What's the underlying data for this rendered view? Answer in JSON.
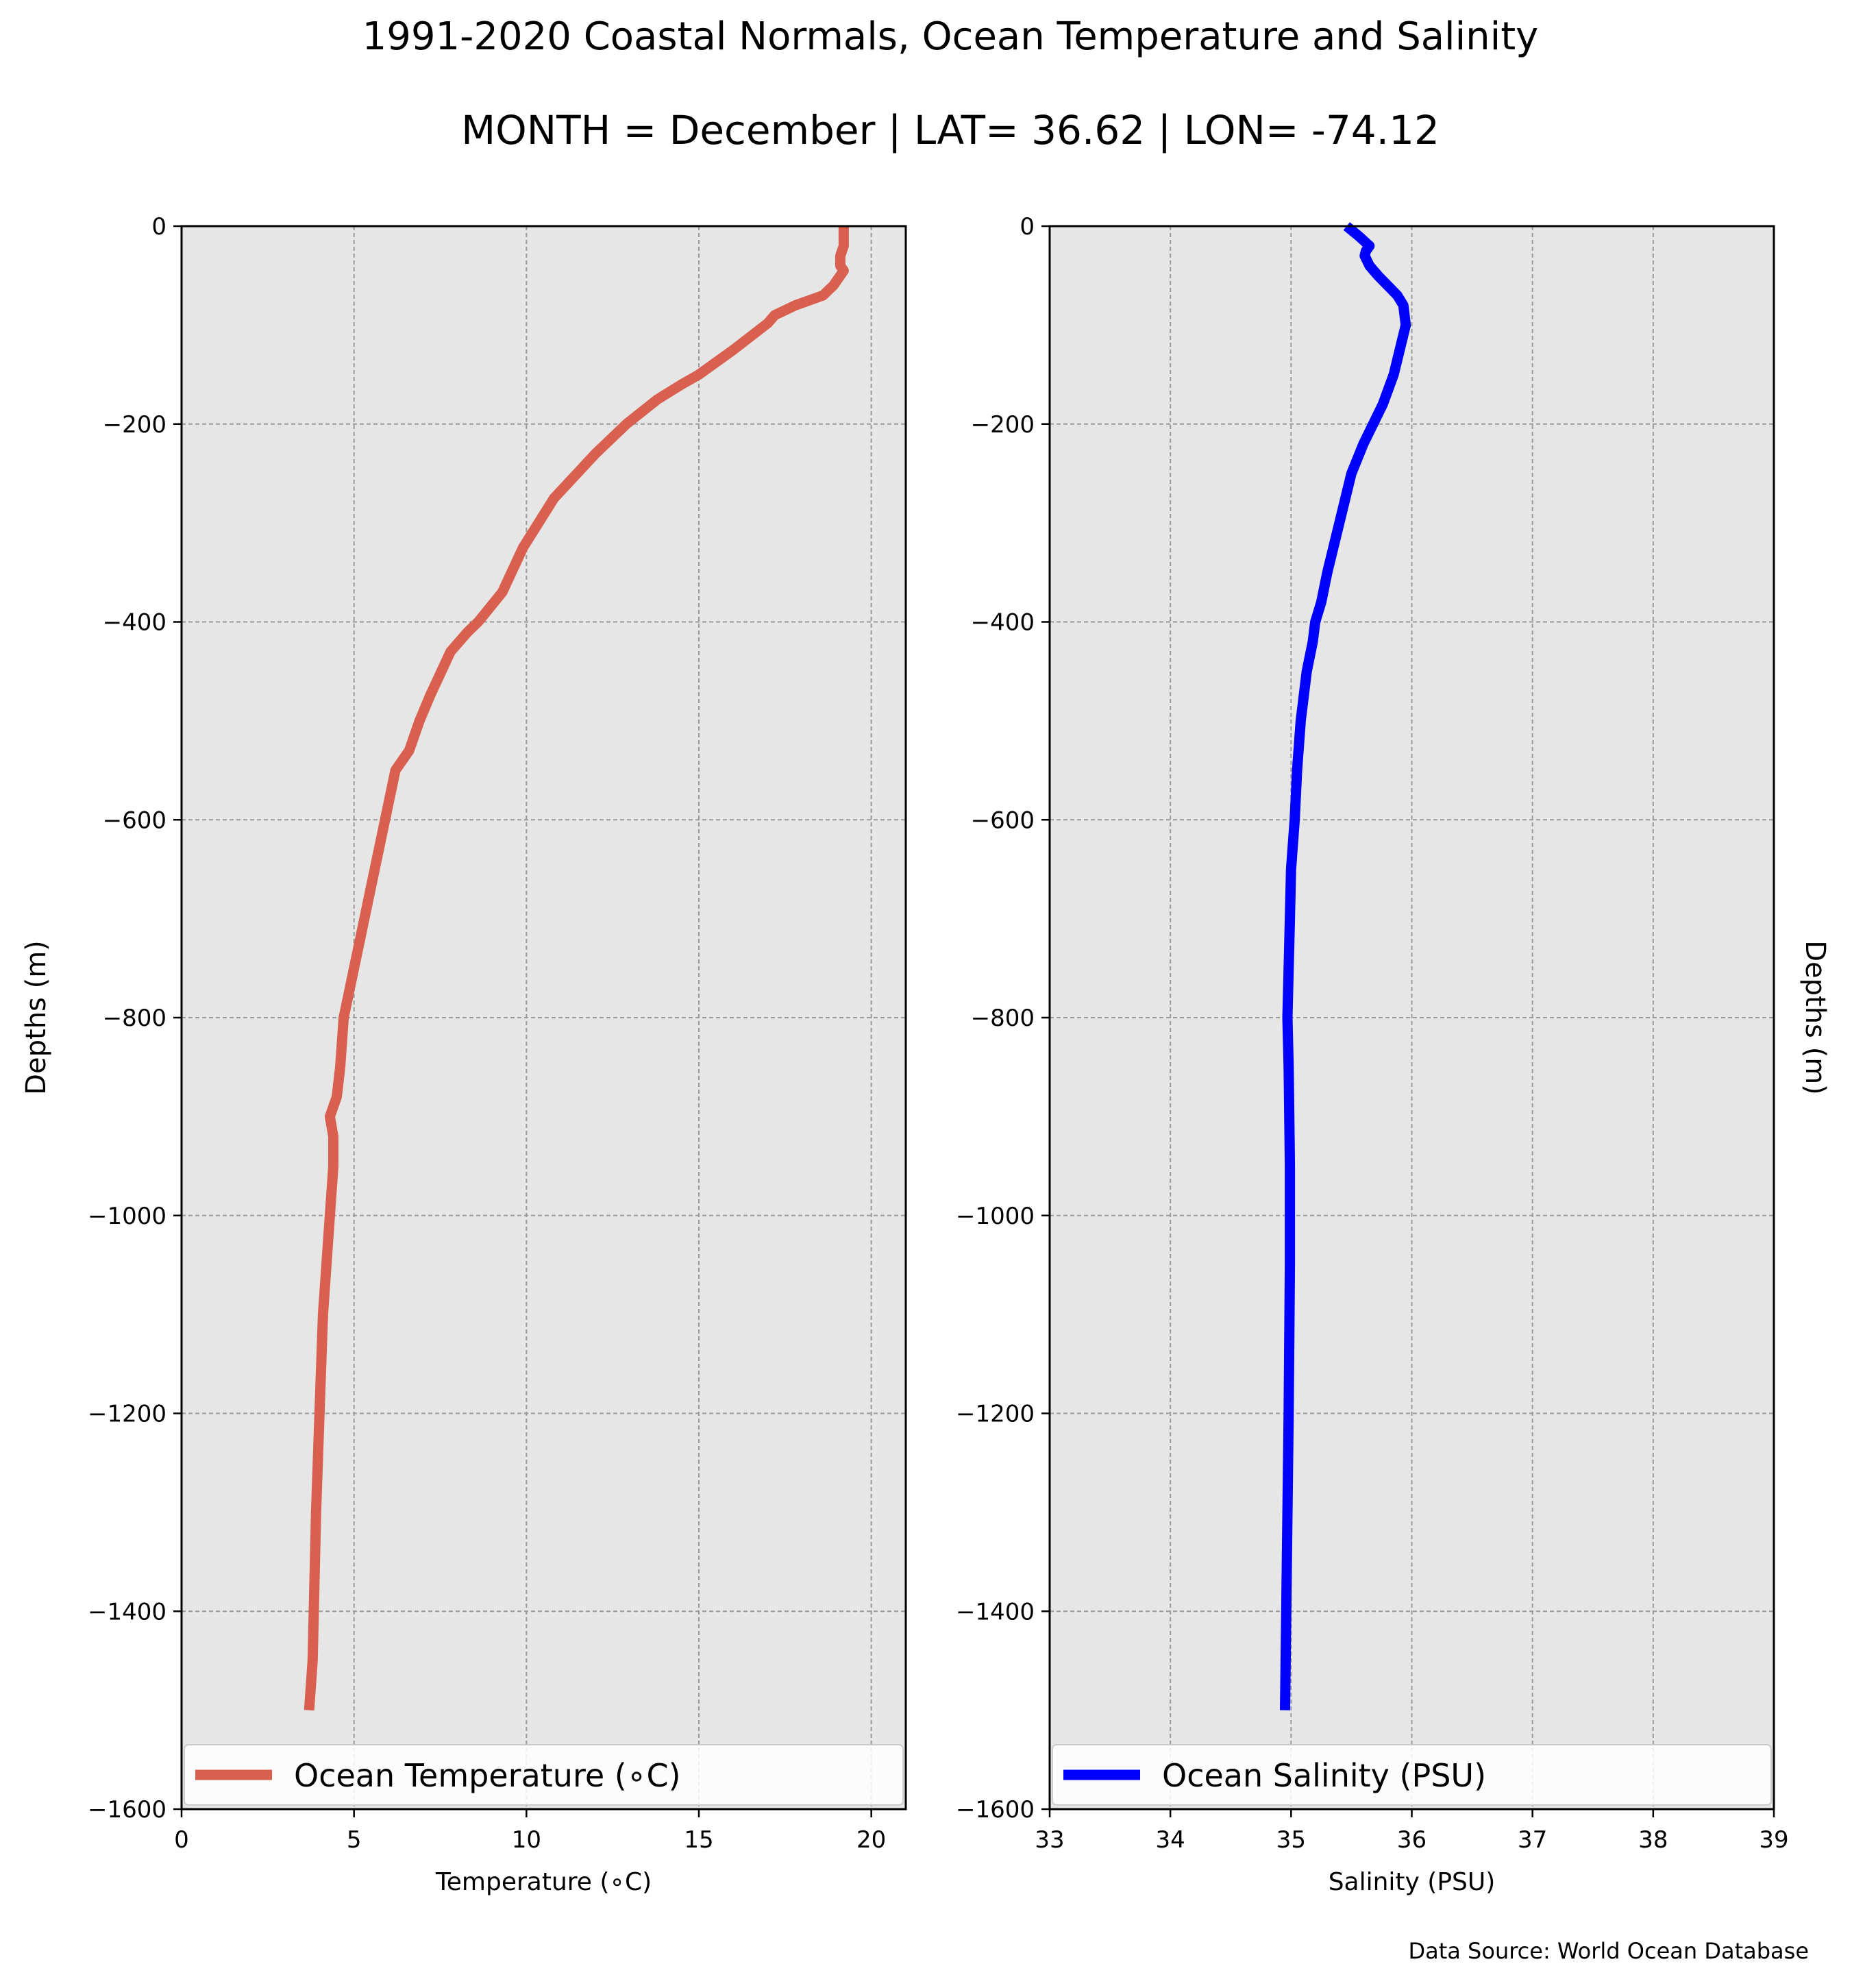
{
  "title": "1991-2020 Coastal Normals, Ocean Temperature and Salinity",
  "subtitle": "MONTH = December | LAT= 36.62 | LON= -74.12",
  "footer": "Data Source: World Ocean Database",
  "chart_data": [
    {
      "type": "line",
      "xlabel": "Temperature (∘C)",
      "ylabel": "Depths (m)",
      "xlim": [
        0,
        21
      ],
      "ylim": [
        -1600,
        0
      ],
      "xticks": [
        0,
        5,
        10,
        15,
        20
      ],
      "yticks": [
        0,
        -200,
        -400,
        -600,
        -800,
        -1000,
        -1200,
        -1400,
        -1600
      ],
      "grid": true,
      "legend_position": "bottom",
      "series": [
        {
          "name": "Ocean Temperature (∘C)",
          "color": "#d9604f",
          "x": [
            19.2,
            19.2,
            19.2,
            19.1,
            19.1,
            19.2,
            19.0,
            18.9,
            18.6,
            18.2,
            17.8,
            17.2,
            17.0,
            16.0,
            15.0,
            14.5,
            13.8,
            12.9,
            12.0,
            10.8,
            9.9,
            9.3,
            8.6,
            8.3,
            7.8,
            7.2,
            6.9,
            6.6,
            6.2,
            5.9,
            5.6,
            5.3,
            5.0,
            4.7,
            4.6,
            4.5,
            4.3,
            4.4,
            4.4,
            4.2,
            4.1,
            4.0,
            3.9,
            3.8,
            3.7
          ],
          "y": [
            0,
            -10,
            -20,
            -30,
            -40,
            -45,
            -55,
            -60,
            -70,
            -75,
            -80,
            -90,
            -98,
            -125,
            -150,
            -160,
            -175,
            -200,
            -230,
            -275,
            -325,
            -370,
            -400,
            -410,
            -430,
            -475,
            -500,
            -530,
            -550,
            -600,
            -650,
            -700,
            -750,
            -800,
            -850,
            -880,
            -900,
            -920,
            -950,
            -1050,
            -1100,
            -1200,
            -1300,
            -1450,
            -1500
          ]
        }
      ]
    },
    {
      "type": "line",
      "xlabel": "Salinity (PSU)",
      "ylabel": "Depths (m)",
      "xlim": [
        33,
        39
      ],
      "ylim": [
        -1600,
        0
      ],
      "xticks": [
        33,
        34,
        35,
        36,
        37,
        38,
        39
      ],
      "yticks": [
        0,
        -200,
        -400,
        -600,
        -800,
        -1000,
        -1200,
        -1400,
        -1600
      ],
      "grid": true,
      "legend_position": "bottom",
      "series": [
        {
          "name": "Ocean Salinity (PSU)",
          "color": "#0000ff",
          "x": [
            35.46,
            35.56,
            35.65,
            35.62,
            35.61,
            35.65,
            35.72,
            35.8,
            35.88,
            35.93,
            35.95,
            35.9,
            35.85,
            35.76,
            35.6,
            35.5,
            35.4,
            35.3,
            35.25,
            35.2,
            35.18,
            35.13,
            35.08,
            35.05,
            35.03,
            35.0,
            34.99,
            34.98,
            34.97,
            34.98,
            34.99,
            34.99,
            34.98,
            34.96,
            34.95
          ],
          "y": [
            0,
            -10,
            -20,
            -25,
            -30,
            -40,
            -50,
            -60,
            -70,
            -80,
            -100,
            -125,
            -150,
            -180,
            -220,
            -250,
            -300,
            -350,
            -380,
            -400,
            -420,
            -450,
            -500,
            -550,
            -600,
            -650,
            -700,
            -750,
            -800,
            -850,
            -950,
            -1050,
            -1200,
            -1400,
            -1500
          ]
        }
      ]
    }
  ]
}
